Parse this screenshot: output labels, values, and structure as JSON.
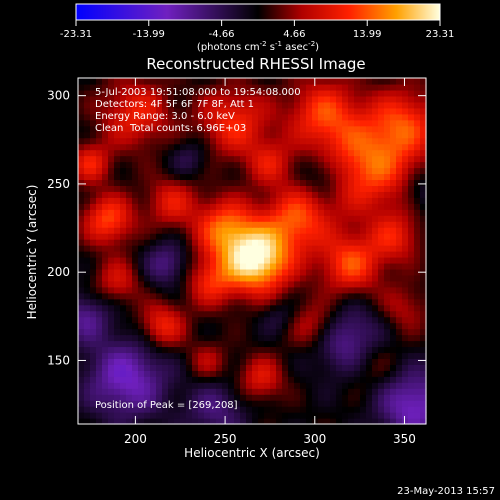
{
  "chart_data": {
    "type": "heatmap",
    "title": "Reconstructed RHESSI Image",
    "xlabel": "Heliocentric X (arcsec)",
    "ylabel": "Heliocentric Y (arcsec)",
    "xlim": [
      168,
      362
    ],
    "ylim": [
      114,
      310
    ],
    "x_ticks": [
      200,
      250,
      300,
      350
    ],
    "y_ticks": [
      150,
      200,
      250,
      300
    ],
    "colorbar": {
      "min": -23.31,
      "max": 23.31,
      "ticks": [
        -23.31,
        -13.99,
        -4.66,
        4.66,
        13.99,
        23.31
      ],
      "tick_labels": [
        "-23.31",
        "-13.99",
        "-4.66",
        "4.66",
        "13.99",
        "23.31"
      ],
      "units_prefix": "(photons cm",
      "units_exp1": "-2",
      "units_mid1": " s",
      "units_exp2": "-1",
      "units_mid2": " asec",
      "units_exp3": "-2",
      "units_suffix": ")"
    },
    "annotations": {
      "time_range": "5-Jul-2003 19:51:08.000 to 19:54:08.000",
      "detectors": "Detectors: 4F 5F 6F 7F 8F, Att 1",
      "energy_range": "Energy Range: 3.0 - 6.0 keV",
      "algorithm": "Clean",
      "total_counts": "Total counts: 6.96E+03",
      "peak_position": "Position of Peak = [269,208]"
    },
    "peak": [
      269,
      208
    ],
    "footer_date": "23-May-2013 15:57",
    "sources": [
      {
        "x": 268,
        "y": 207,
        "amp": 23.0,
        "sigma": 13
      },
      {
        "x": 250,
        "y": 225,
        "amp": 14.0,
        "sigma": 12
      },
      {
        "x": 242,
        "y": 195,
        "amp": 10.0,
        "sigma": 10
      },
      {
        "x": 290,
        "y": 230,
        "amp": 13.0,
        "sigma": 13
      },
      {
        "x": 330,
        "y": 260,
        "amp": 14.0,
        "sigma": 18
      },
      {
        "x": 350,
        "y": 285,
        "amp": 11.0,
        "sigma": 14
      },
      {
        "x": 305,
        "y": 290,
        "amp": 12.0,
        "sigma": 14
      },
      {
        "x": 255,
        "y": 285,
        "amp": 11.0,
        "sigma": 14
      },
      {
        "x": 200,
        "y": 290,
        "amp": 10.0,
        "sigma": 14
      },
      {
        "x": 185,
        "y": 230,
        "amp": 13.0,
        "sigma": 10
      },
      {
        "x": 220,
        "y": 240,
        "amp": 9.0,
        "sigma": 10
      },
      {
        "x": 190,
        "y": 195,
        "amp": 8.0,
        "sigma": 9
      },
      {
        "x": 215,
        "y": 170,
        "amp": 11.0,
        "sigma": 9
      },
      {
        "x": 320,
        "y": 205,
        "amp": 13.0,
        "sigma": 12
      },
      {
        "x": 345,
        "y": 220,
        "amp": 9.0,
        "sigma": 10
      },
      {
        "x": 300,
        "y": 170,
        "amp": 8.0,
        "sigma": 10
      },
      {
        "x": 330,
        "y": 150,
        "amp": 7.0,
        "sigma": 12
      },
      {
        "x": 270,
        "y": 140,
        "amp": 9.0,
        "sigma": 9
      },
      {
        "x": 240,
        "y": 150,
        "amp": 6.0,
        "sigma": 8
      },
      {
        "x": 350,
        "y": 180,
        "amp": 6.0,
        "sigma": 10
      },
      {
        "x": 175,
        "y": 262,
        "amp": 10.0,
        "sigma": 8
      },
      {
        "x": 275,
        "y": 262,
        "amp": 8.0,
        "sigma": 9
      },
      {
        "x": 320,
        "y": 160,
        "amp": -12.0,
        "sigma": 14
      },
      {
        "x": 195,
        "y": 140,
        "amp": -12.0,
        "sigma": 16
      },
      {
        "x": 355,
        "y": 125,
        "amp": -12.0,
        "sigma": 14
      },
      {
        "x": 245,
        "y": 122,
        "amp": -7.0,
        "sigma": 12
      },
      {
        "x": 218,
        "y": 205,
        "amp": -8.0,
        "sigma": 9
      },
      {
        "x": 305,
        "y": 255,
        "amp": -6.0,
        "sigma": 9
      },
      {
        "x": 230,
        "y": 265,
        "amp": -5.0,
        "sigma": 8
      },
      {
        "x": 172,
        "y": 175,
        "amp": -8.0,
        "sigma": 10
      },
      {
        "x": 360,
        "y": 245,
        "amp": -5.0,
        "sigma": 8
      },
      {
        "x": 280,
        "y": 175,
        "amp": -4.0,
        "sigma": 7
      }
    ]
  }
}
